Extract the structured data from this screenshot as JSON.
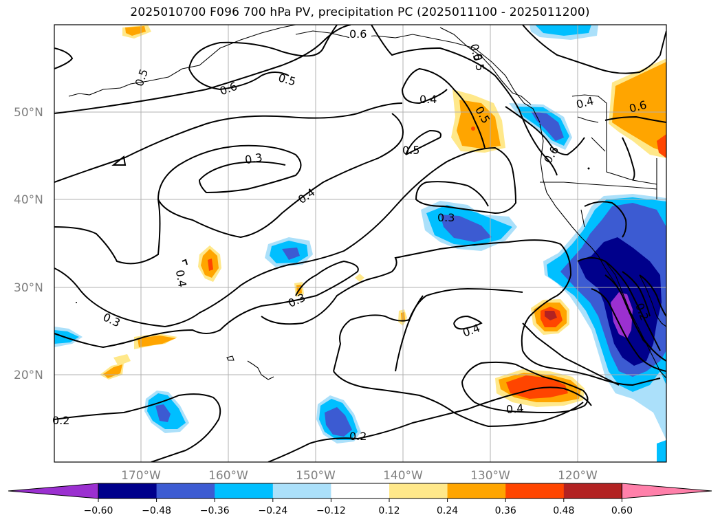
{
  "title": "2025010700 F096 700 hPa PV, precipitation PC (2025011100 - 2025011200)",
  "map": {
    "lat_labels": [
      "50°N",
      "40°N",
      "30°N",
      "20°N"
    ],
    "lon_labels": [
      "170°W",
      "160°W",
      "150°W",
      "140°W",
      "130°W",
      "120°W"
    ],
    "contour_labels": [
      "0.6",
      "0.5",
      "0.6",
      "0.5",
      "0.4",
      "0.5",
      "0.5",
      "0.4",
      "0.6",
      "0.6",
      "0.5",
      "0.3",
      "0.4",
      "0.3",
      "0.4",
      "0.3",
      "0.3",
      "0.4",
      "0.4",
      "0.2",
      "0.2",
      "0.2",
      "0.5"
    ]
  },
  "colorbar": {
    "colors": [
      "#9b30d0",
      "#00008b",
      "#3c5bd2",
      "#00bfff",
      "#abe0fa",
      "#ffffff",
      "#ffe88a",
      "#ffa500",
      "#ff4500",
      "#b22222",
      "#ff80aa"
    ],
    "ticks": [
      "−0.60",
      "−0.48",
      "−0.36",
      "−0.24",
      "−0.12",
      "0.12",
      "0.24",
      "0.36",
      "0.48",
      "0.60"
    ]
  }
}
